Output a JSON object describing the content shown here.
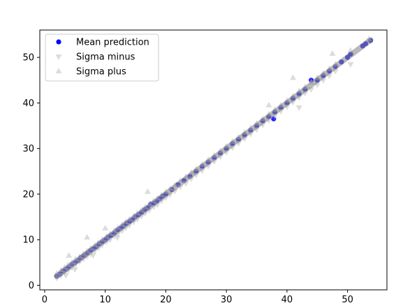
{
  "chart_data": {
    "type": "scatter",
    "title": "",
    "xlabel": "",
    "ylabel": "",
    "xlim": [
      -0.8,
      56.5
    ],
    "ylim": [
      -1.0,
      56.0
    ],
    "x_ticks": [
      "0",
      "10",
      "20",
      "30",
      "40",
      "50"
    ],
    "y_ticks": [
      "0",
      "10",
      "20",
      "30",
      "40",
      "50"
    ],
    "grid": false,
    "legend_position": "upper-left",
    "series": [
      {
        "name": "Mean prediction",
        "marker": "circle",
        "color": "#0000ff",
        "x": [
          2,
          2.5,
          3,
          3.5,
          4,
          4.5,
          5,
          5.5,
          6,
          6.5,
          7,
          7.5,
          8,
          8.5,
          9,
          9.5,
          10,
          10.5,
          11,
          11.5,
          12,
          12.5,
          13,
          13.5,
          14,
          14.5,
          15,
          15.5,
          16,
          16.5,
          17,
          17.5,
          18,
          18.5,
          19,
          19.5,
          20,
          21,
          22,
          23,
          24,
          25,
          26,
          27,
          28,
          29,
          30,
          31,
          32,
          33,
          34,
          35,
          36,
          37,
          37.8,
          38,
          39,
          40,
          41,
          42,
          43,
          44,
          45,
          46,
          47,
          48,
          49,
          50,
          50.5,
          52.5,
          53,
          53.8
        ],
        "y": [
          2,
          2.4,
          3.1,
          3.5,
          4,
          4.6,
          5,
          5.4,
          6.1,
          6.5,
          7,
          7.6,
          8,
          8.4,
          9.1,
          9.5,
          10,
          10.6,
          11,
          11.4,
          12.1,
          12.5,
          13,
          13.6,
          14,
          14.4,
          15.1,
          15.5,
          16,
          16.6,
          17,
          17.8,
          18,
          18.4,
          19,
          19.6,
          20,
          21,
          22.1,
          23,
          23.9,
          25,
          26.1,
          27,
          28,
          29,
          30,
          31.1,
          32,
          33,
          34,
          35,
          36.1,
          37,
          36.5,
          38,
          39,
          40,
          41,
          42,
          43,
          45,
          45,
          46,
          47,
          48,
          49,
          50,
          50.7,
          52.5,
          53,
          53.7
        ]
      },
      {
        "name": "Sigma minus",
        "marker": "triangle-down",
        "color": "#c0c0c0",
        "x": [
          2,
          2.7,
          3.3,
          3.9,
          4.5,
          5.1,
          5.8,
          6.4,
          7,
          7.6,
          8.3,
          8.9,
          9.5,
          10.2,
          10.8,
          11.5,
          12.1,
          12.8,
          13.4,
          14,
          14.7,
          15.3,
          16,
          16.6,
          17.3,
          18,
          18.6,
          19.3,
          20,
          20.7,
          21.5,
          22.4,
          23.3,
          24.2,
          25,
          26,
          27,
          28,
          29,
          30,
          31,
          32,
          33,
          34,
          35,
          36,
          37,
          38,
          39,
          40,
          41,
          42,
          43,
          44,
          45,
          46,
          47,
          48,
          50.5,
          3.5,
          5,
          8,
          12,
          42
        ],
        "y": [
          1.6,
          2.2,
          2.8,
          3.3,
          3.9,
          4.6,
          5.2,
          5.8,
          6.4,
          6.9,
          7.6,
          8.2,
          8.8,
          9.5,
          10,
          10.8,
          11.3,
          12,
          12.6,
          13.2,
          13.9,
          14.5,
          15.2,
          15.8,
          16.5,
          17.2,
          17.7,
          18.5,
          19.2,
          19.9,
          20.7,
          21.6,
          22.4,
          23.4,
          24.2,
          25.2,
          26.2,
          27.2,
          28.2,
          29.2,
          30.2,
          31.2,
          32.2,
          33.2,
          34.2,
          35.2,
          36.2,
          37.2,
          38.2,
          39.2,
          40.2,
          41.2,
          42.2,
          43,
          44,
          45,
          46,
          47,
          48.5,
          2.2,
          3.5,
          6.6,
          10.5,
          39
        ]
      },
      {
        "name": "Sigma plus",
        "marker": "triangle-up",
        "color": "#c0c0c0",
        "x": [
          2,
          2.7,
          3.3,
          3.9,
          4.5,
          5.1,
          5.8,
          6.4,
          7,
          7.6,
          8.3,
          8.9,
          9.5,
          10.2,
          10.8,
          11.5,
          12.1,
          12.8,
          13.4,
          14,
          14.7,
          15.3,
          16,
          16.6,
          17.3,
          18,
          18.6,
          19.3,
          20,
          20.7,
          21.5,
          22.4,
          23.3,
          24.2,
          25,
          26,
          27,
          28,
          29,
          30,
          31,
          32,
          33,
          34,
          35,
          36,
          37,
          38,
          39,
          40,
          41,
          42,
          43,
          44,
          45,
          46,
          47,
          48,
          50.5,
          53.5,
          4,
          7,
          10,
          17,
          37,
          41,
          47.5
        ],
        "y": [
          2.6,
          3.3,
          3.9,
          4.5,
          5,
          5.7,
          6.3,
          6.9,
          7.5,
          8.1,
          8.8,
          9.4,
          10,
          10.7,
          11.3,
          12,
          12.6,
          13.3,
          13.9,
          14.5,
          15.2,
          15.8,
          16.5,
          17.1,
          17.8,
          18.5,
          19.1,
          19.8,
          20.5,
          21.2,
          22,
          22.9,
          23.8,
          24.7,
          25.5,
          26.5,
          27.5,
          28.5,
          29.5,
          30.5,
          31.5,
          32.5,
          33.5,
          34.5,
          35.5,
          36.5,
          37.5,
          38.5,
          39.5,
          40.5,
          41.5,
          42.6,
          43.5,
          44.5,
          45.5,
          46.5,
          47.5,
          48.5,
          51.5,
          54,
          6.5,
          10.5,
          12.5,
          20.5,
          39.5,
          45.5,
          50.8
        ]
      }
    ]
  }
}
